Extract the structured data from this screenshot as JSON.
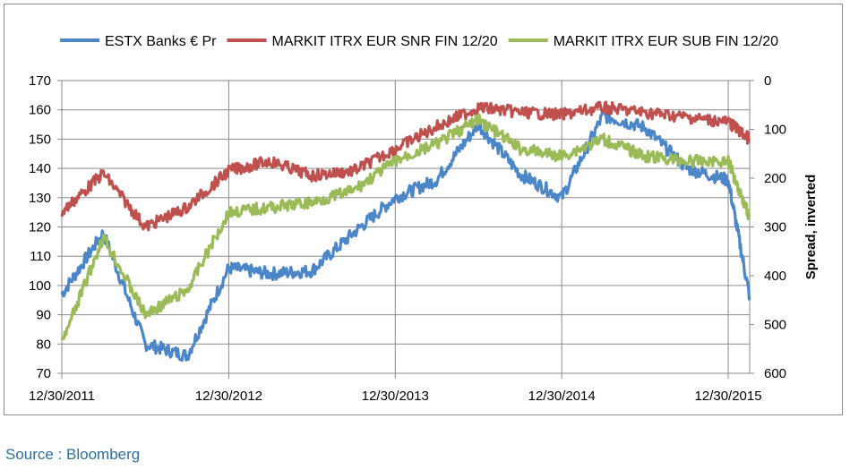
{
  "chart_data": {
    "type": "line",
    "x": [
      "12/30/2011",
      "03/30/2012",
      "06/30/2012",
      "09/30/2012",
      "12/30/2012",
      "03/30/2013",
      "06/30/2013",
      "09/30/2013",
      "12/30/2013",
      "03/30/2014",
      "06/30/2014",
      "09/30/2014",
      "12/30/2014",
      "03/30/2015",
      "06/30/2015",
      "09/30/2015",
      "12/30/2015",
      "02/15/2016"
    ],
    "xticks": [
      "12/30/2011",
      "12/30/2012",
      "12/30/2013",
      "12/30/2014",
      "12/30/2015"
    ],
    "left_axis": {
      "ylim": [
        70,
        170
      ],
      "ticks": [
        "70",
        "80",
        "90",
        "100",
        "110",
        "120",
        "130",
        "140",
        "150",
        "160",
        "170"
      ]
    },
    "right_axis": {
      "ylim": [
        0,
        600
      ],
      "inverted": true,
      "label": "Spread, inverted",
      "ticks": [
        "0",
        "100",
        "200",
        "300",
        "400",
        "500",
        "600"
      ]
    },
    "grid": true,
    "legend_position": "top",
    "series": [
      {
        "name": "ESTX Banks € Pr",
        "color": "#4a86c8",
        "axis": "left",
        "values": [
          97,
          118,
          80,
          76,
          106,
          104,
          105,
          118,
          130,
          136,
          155,
          138,
          130,
          158,
          154,
          140,
          136,
          96
        ]
      },
      {
        "name": "MARKIT ITRX EUR SNR FIN 12/20",
        "color": "#c0504d",
        "axis": "right",
        "values": [
          270,
          190,
          300,
          260,
          185,
          165,
          195,
          185,
          140,
          95,
          55,
          65,
          70,
          55,
          65,
          75,
          85,
          120
        ]
      },
      {
        "name": "MARKIT ITRX EUR SUB FIN 12/20",
        "color": "#9bbb59",
        "axis": "right",
        "values": [
          540,
          320,
          480,
          430,
          270,
          260,
          250,
          225,
          165,
          130,
          80,
          140,
          155,
          120,
          155,
          165,
          165,
          280
        ]
      }
    ]
  },
  "source_text": "Source : Bloomberg"
}
